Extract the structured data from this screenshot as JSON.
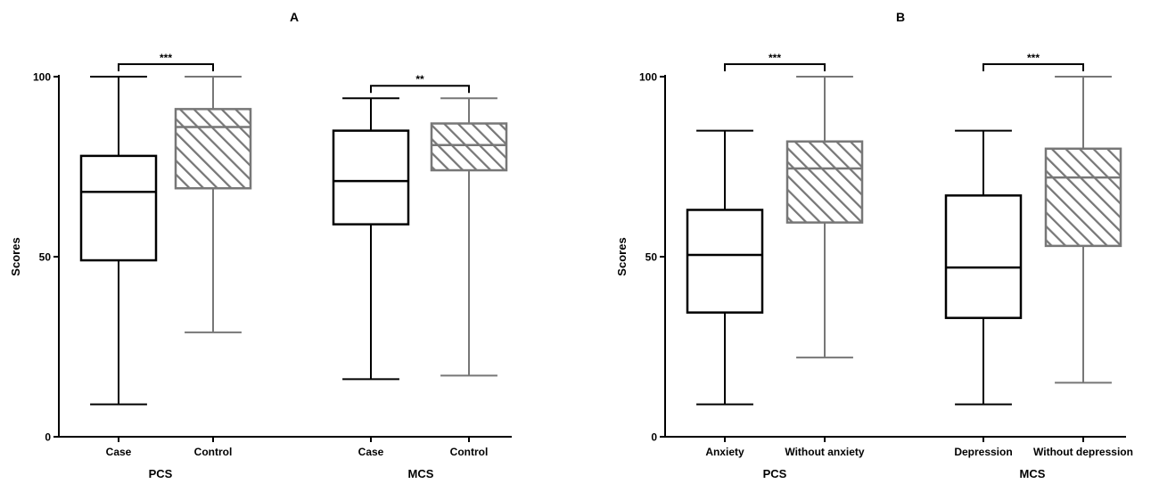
{
  "chart_data": [
    {
      "type": "box",
      "title": "A",
      "ylabel": "Scores",
      "ylim": [
        0,
        100
      ],
      "yticks": [
        "0",
        "50",
        "100"
      ],
      "groups": [
        {
          "label": "PCS",
          "boxes": [
            {
              "label": "Case",
              "min": 9,
              "q1": 49,
              "median": 68,
              "q3": 78,
              "max": 100,
              "style": "plain"
            },
            {
              "label": "Control",
              "min": 29,
              "q1": 69,
              "median": 86,
              "q3": 91,
              "max": 100,
              "style": "hatched"
            }
          ],
          "significance": "***"
        },
        {
          "label": "MCS",
          "boxes": [
            {
              "label": "Case",
              "min": 16,
              "q1": 59,
              "median": 71,
              "q3": 85,
              "max": 94,
              "style": "plain"
            },
            {
              "label": "Control",
              "min": 17,
              "q1": 74,
              "median": 81,
              "q3": 87,
              "max": 94,
              "style": "hatched"
            }
          ],
          "significance": "**"
        }
      ]
    },
    {
      "type": "box",
      "title": "B",
      "ylabel": "Scores",
      "ylim": [
        0,
        100
      ],
      "yticks": [
        "0",
        "50",
        "100"
      ],
      "groups": [
        {
          "label": "PCS",
          "boxes": [
            {
              "label": "Anxiety",
              "min": 9,
              "q1": 34.5,
              "median": 50.5,
              "q3": 63,
              "max": 85,
              "style": "plain"
            },
            {
              "label": "Without anxiety",
              "min": 22,
              "q1": 59.5,
              "median": 74.5,
              "q3": 82,
              "max": 100,
              "style": "hatched"
            }
          ],
          "significance": "***"
        },
        {
          "label": "MCS",
          "boxes": [
            {
              "label": "Depression",
              "min": 9,
              "q1": 33,
              "median": 47,
              "q3": 67,
              "max": 85,
              "style": "plain"
            },
            {
              "label": "Without depression",
              "min": 15,
              "q1": 53,
              "median": 72,
              "q3": 80,
              "max": 100,
              "style": "hatched"
            }
          ],
          "significance": "***"
        }
      ]
    }
  ]
}
